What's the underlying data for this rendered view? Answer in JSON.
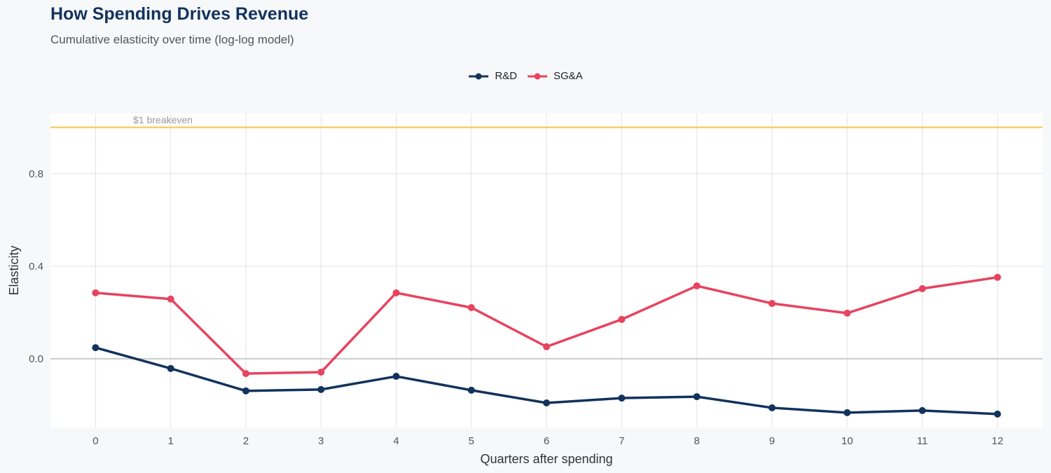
{
  "chart_data": {
    "type": "line",
    "title": "How Spending Drives Revenue",
    "subtitle": "Cumulative elasticity over time (log-log model)",
    "xlabel": "Quarters after spending",
    "ylabel": "Elasticity",
    "x": [
      0,
      1,
      2,
      3,
      4,
      5,
      6,
      7,
      8,
      9,
      10,
      11,
      12
    ],
    "xticks": [
      "0",
      "1",
      "2",
      "3",
      "4",
      "5",
      "6",
      "7",
      "8",
      "9",
      "10",
      "11",
      "12"
    ],
    "yticks": [
      "0.0",
      "0.4",
      "0.8"
    ],
    "ytick_values": [
      0.0,
      0.4,
      0.8
    ],
    "ylim": [
      -0.297,
      1.06
    ],
    "xlim": [
      -0.6,
      12.6
    ],
    "grid": true,
    "legend_position": "top",
    "series": [
      {
        "name": "R&D",
        "color": "#12325c",
        "values": [
          0.048,
          -0.042,
          -0.139,
          -0.133,
          -0.076,
          -0.136,
          -0.191,
          -0.17,
          -0.164,
          -0.212,
          -0.233,
          -0.224,
          -0.239
        ]
      },
      {
        "name": "SG&A",
        "color": "#e8435f",
        "values": [
          0.285,
          0.258,
          -0.064,
          -0.058,
          0.285,
          0.221,
          0.052,
          0.17,
          0.315,
          0.239,
          0.197,
          0.303,
          0.352
        ]
      }
    ],
    "reference_line": {
      "y": 1.0,
      "label": "$1 breakeven",
      "color": "#f5cf6a"
    }
  }
}
